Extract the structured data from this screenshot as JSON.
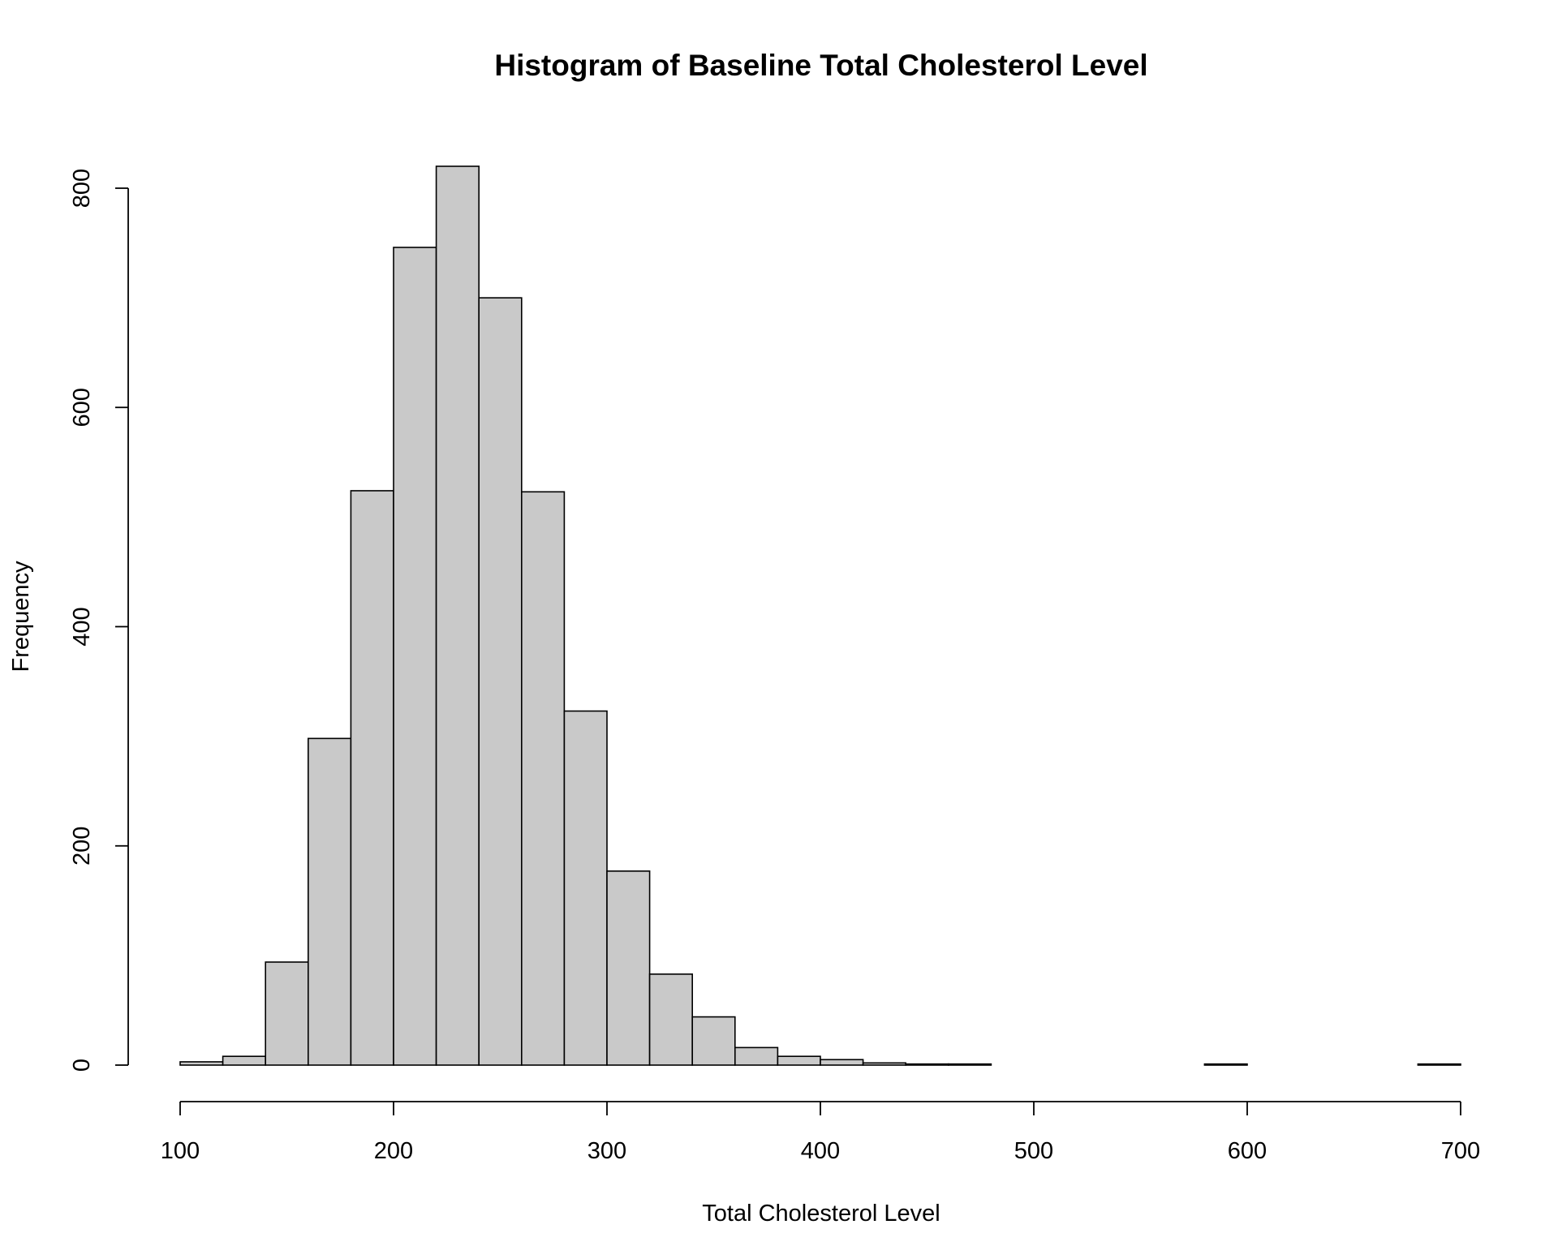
{
  "chart_data": {
    "type": "bar",
    "title": "Histogram of Baseline Total Cholesterol Level",
    "xlabel": "Total Cholesterol Level",
    "ylabel": "Frequency",
    "bin_width": 20,
    "bins_start": [
      100,
      120,
      140,
      160,
      180,
      200,
      220,
      240,
      260,
      280,
      300,
      320,
      340,
      360,
      380,
      400,
      420,
      440,
      460,
      480,
      500,
      520,
      540,
      560,
      580,
      600,
      620,
      640,
      660,
      680
    ],
    "values": [
      3,
      8,
      94,
      298,
      524,
      746,
      820,
      700,
      523,
      323,
      177,
      83,
      44,
      16,
      8,
      5,
      2,
      1,
      1,
      0,
      0,
      0,
      0,
      0,
      1,
      0,
      0,
      0,
      0,
      1
    ],
    "xlim": [
      100,
      700
    ],
    "ylim": [
      0,
      800
    ],
    "x_ticks": [
      100,
      200,
      300,
      400,
      500,
      600,
      700
    ],
    "y_ticks": [
      0,
      200,
      400,
      600,
      800
    ],
    "bar_color": "#c9c9c9",
    "grid": false
  }
}
